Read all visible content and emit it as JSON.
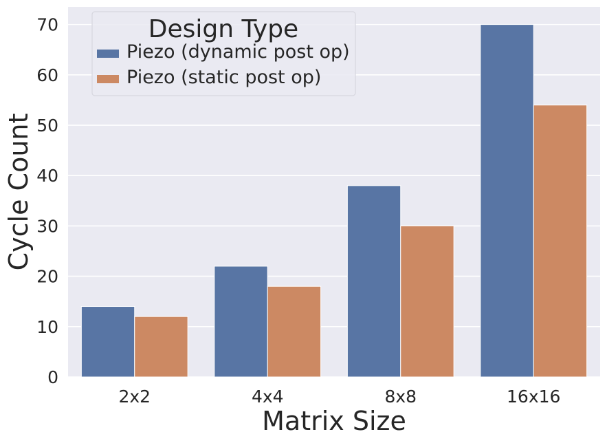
{
  "chart_data": {
    "type": "bar",
    "categories": [
      "2x2",
      "4x4",
      "8x8",
      "16x16"
    ],
    "series": [
      {
        "name": "Piezo (dynamic post op)",
        "values": [
          14,
          22,
          38,
          70
        ],
        "color": "#5875a4"
      },
      {
        "name": "Piezo (static post op)",
        "values": [
          12,
          18,
          30,
          54
        ],
        "color": "#cc8963"
      }
    ],
    "title": "",
    "xlabel": "Matrix Size",
    "ylabel": "Cycle Count",
    "ylim": [
      0,
      73.5
    ],
    "yticks": [
      0,
      10,
      20,
      30,
      40,
      50,
      60,
      70
    ],
    "grid": true,
    "legend": {
      "title": "Design Type",
      "placement": "top-left"
    },
    "colors": {
      "background": "#eaeaf2",
      "grid": "#ffffff",
      "text": "#262626"
    }
  }
}
